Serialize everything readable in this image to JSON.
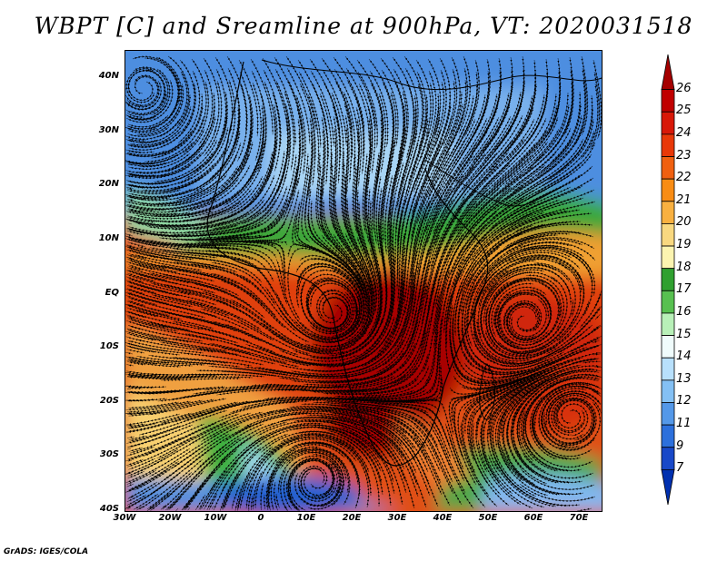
{
  "title": "WBPT [C] and Sreamline at 900hPa, VT: 2020031518",
  "credit": "GrADS: IGES/COLA",
  "lat_labels": [
    "40N",
    "30N",
    "20N",
    "10N",
    "EQ",
    "10S",
    "20S",
    "30S",
    "40S"
  ],
  "lon_labels": [
    "30W",
    "20W",
    "10W",
    "0",
    "10E",
    "20E",
    "30E",
    "40E",
    "50E",
    "60E",
    "70E"
  ],
  "colorbar": {
    "labels": [
      "26",
      "25",
      "24",
      "23",
      "22",
      "21",
      "20",
      "19",
      "18",
      "17",
      "16",
      "15",
      "14",
      "13",
      "12",
      "11",
      "9",
      "7"
    ],
    "colors": [
      "#a50000",
      "#c00000",
      "#d81808",
      "#e83808",
      "#f06010",
      "#f88c14",
      "#f8b040",
      "#f8d880",
      "#fcf4b0",
      "#30a030",
      "#58c050",
      "#b8f0b8",
      "#f0fcfc",
      "#b8e0fc",
      "#84c0f4",
      "#5498e8",
      "#2c70dc",
      "#1848c8",
      "#0030b0"
    ]
  }
}
